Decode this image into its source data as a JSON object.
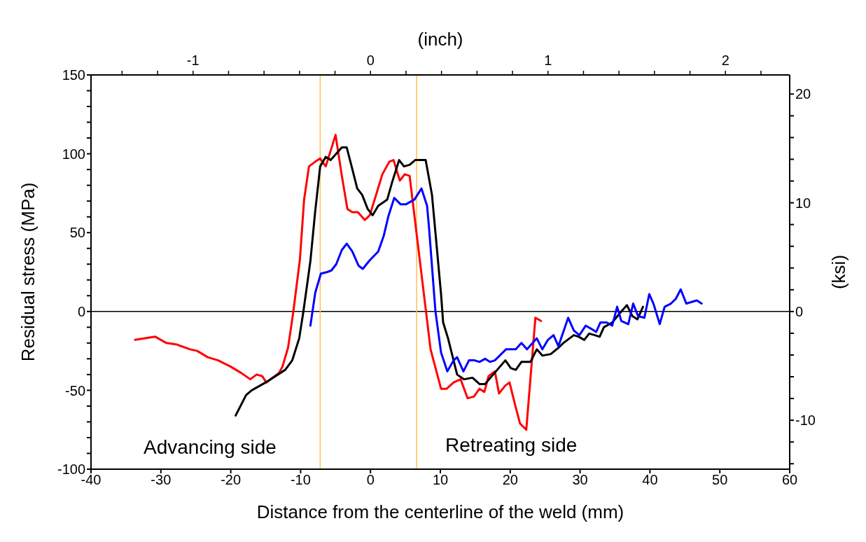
{
  "chart_data": {
    "type": "line",
    "xlabel": "Distance from the centerline of the weld (mm)",
    "ylabel": "Residual stress  (MPa)",
    "y2label": "(ksi)",
    "x2label": "(inch)",
    "xlim": [
      -40,
      60
    ],
    "xticks": [
      -40,
      -30,
      -20,
      -10,
      0,
      10,
      20,
      30,
      40,
      50,
      60
    ],
    "ylim": [
      -100,
      150
    ],
    "yticks": [
      -100,
      {
        "value": -90,
        "label": null
      },
      {
        "value": -80,
        "label": null
      },
      {
        "value": -70,
        "label": null
      },
      {
        "value": -60,
        "label": null
      },
      -50,
      {
        "value": -40,
        "label": null
      },
      {
        "value": -30,
        "label": null
      },
      {
        "value": -20,
        "label": null
      },
      {
        "value": -10,
        "label": null
      },
      0,
      {
        "value": 10,
        "label": null
      },
      {
        "value": 20,
        "label": null
      },
      {
        "value": 30,
        "label": null
      },
      {
        "value": 40,
        "label": null
      },
      50,
      {
        "value": 60,
        "label": null
      },
      {
        "value": 70,
        "label": null
      },
      {
        "value": 80,
        "label": null
      },
      {
        "value": 90,
        "label": null
      },
      100,
      {
        "value": 110,
        "label": null
      },
      {
        "value": 120,
        "label": null
      },
      {
        "value": 130,
        "label": null
      },
      {
        "value": 140,
        "label": null
      },
      150
    ],
    "y2lim": [
      -14.5,
      21.76
    ],
    "y2ticks": [
      {
        "value": -14,
        "label": null
      },
      {
        "value": -12,
        "label": null
      },
      -10,
      {
        "value": -8,
        "label": null
      },
      {
        "value": -6,
        "label": null
      },
      {
        "value": -4,
        "label": null
      },
      {
        "value": -2,
        "label": null
      },
      0,
      {
        "value": 2,
        "label": null
      },
      {
        "value": 4,
        "label": null
      },
      {
        "value": 6,
        "label": null
      },
      {
        "value": 8,
        "label": null
      },
      10,
      {
        "value": 12,
        "label": null
      },
      {
        "value": 14,
        "label": null
      },
      {
        "value": 16,
        "label": null
      },
      {
        "value": 18,
        "label": null
      },
      20
    ],
    "x2lim": [
      -1.575,
      2.362
    ],
    "x2ticks": [
      {
        "value": -1.4,
        "label": null
      },
      {
        "value": -1.2,
        "label": null
      },
      -1,
      {
        "value": -0.8,
        "label": null
      },
      {
        "value": -0.6,
        "label": null
      },
      {
        "value": -0.4,
        "label": null
      },
      {
        "value": -0.2,
        "label": null
      },
      0,
      {
        "value": 0.2,
        "label": null
      },
      {
        "value": 0.4,
        "label": null
      },
      {
        "value": 0.6,
        "label": null
      },
      {
        "value": 0.8,
        "label": null
      },
      1,
      {
        "value": 1.2,
        "label": null
      },
      {
        "value": 1.4,
        "label": null
      },
      {
        "value": 1.6,
        "label": null
      },
      {
        "value": 1.8,
        "label": null
      },
      2,
      {
        "value": 2.2,
        "label": null
      }
    ],
    "grid": false,
    "marker": "none",
    "line_style": "solid",
    "ref_lines": [
      {
        "axis": "y",
        "value": 0,
        "color": "#000000"
      },
      {
        "axis": "x",
        "value": -7.2,
        "color": "#ffc050"
      },
      {
        "axis": "x",
        "value": 6.6,
        "color": "#ffc050"
      }
    ],
    "annotations": [
      "Advancing side",
      "Retreating side"
    ],
    "series": [
      {
        "color": "#ff0000",
        "x": [
          -33.7,
          -30.8,
          -29.2,
          -27.7,
          -25.8,
          -24.8,
          -23.3,
          -21.8,
          -20,
          -18.5,
          -17.2,
          -16.3,
          -15.5,
          -14.9,
          -13.1,
          -12.6,
          -11.8,
          -11.1,
          -10.1,
          -9.5,
          -8.8,
          -7.9,
          -7.2,
          -6.4,
          -5,
          -4.1,
          -3.3,
          -2.6,
          -1.8,
          -0.8,
          -0.1,
          0.6,
          1.7,
          2.7,
          3.3,
          4.2,
          4.9,
          5.6,
          8.6,
          10.1,
          10.9,
          11.9,
          12.9,
          13.9,
          14.8,
          15.6,
          16.3,
          16.9,
          17.8,
          18.4,
          19.3,
          19.9,
          20.8,
          21.4,
          22.3,
          23.6,
          24.4
        ],
        "values": [
          -18,
          -16,
          -20,
          -21,
          -24,
          -25,
          -29,
          -31,
          -35,
          -39,
          -43,
          -40,
          -41,
          -45,
          -39,
          -35,
          -23,
          -2,
          33,
          71,
          92,
          95,
          97,
          92,
          112,
          86,
          65,
          63,
          63,
          58,
          61,
          71,
          87,
          95,
          96,
          83,
          87,
          86,
          -24,
          -49,
          -49,
          -45,
          -43,
          -55,
          -54,
          -49,
          -51,
          -41,
          -38,
          -52,
          -47,
          -45,
          -61,
          -71,
          -75,
          -4,
          -6
        ]
      },
      {
        "color": "#000000",
        "x": [
          -19.3,
          -17.8,
          -17,
          -15,
          -13.6,
          -12.2,
          -11.2,
          -10.2,
          -9.6,
          -8.6,
          -7.9,
          -7.2,
          -6.4,
          -5.7,
          -4.9,
          -4.1,
          -3.4,
          -2.7,
          -1.9,
          -1.2,
          -0.4,
          0.3,
          1.1,
          2.4,
          3.1,
          4.1,
          4.8,
          5.6,
          6.4,
          7.1,
          7.9,
          8.8,
          9.4,
          10.1,
          10.4,
          11.1,
          12.4,
          13.4,
          14.6,
          15.6,
          16.4,
          19.3,
          20.1,
          20.8,
          21.6,
          22.9,
          23.8,
          24.6,
          25.8,
          26.9,
          27.6,
          29.1,
          29.8,
          30.6,
          31.3,
          32.1,
          32.8,
          33.4,
          34.6,
          35.9,
          36.7,
          37.5,
          38.2,
          39
        ],
        "values": [
          -66,
          -53,
          -50,
          -45,
          -41,
          -37,
          -31,
          -17,
          0,
          32,
          64,
          92,
          98,
          96,
          100,
          104,
          104,
          92,
          78,
          74,
          65,
          61,
          67,
          71,
          82,
          96,
          92,
          93,
          96,
          96,
          96,
          74,
          45,
          11,
          -7,
          -17,
          -40,
          -43,
          -42,
          -46,
          -46,
          -31,
          -36,
          -37,
          -32,
          -32,
          -24,
          -28,
          -27,
          -23,
          -20,
          -15,
          -16,
          -18,
          -14,
          -15,
          -16,
          -10,
          -7,
          0,
          4,
          -3,
          -5,
          3
        ]
      },
      {
        "color": "#0000ff",
        "x": [
          -8.6,
          -7.9,
          -7.1,
          -6.2,
          -5.6,
          -4.9,
          -4.1,
          -3.4,
          -2.6,
          -1.7,
          -1.1,
          -0.2,
          1.1,
          1.9,
          2.6,
          3.4,
          4.3,
          5.1,
          6.3,
          7.3,
          8.1,
          8.4,
          9.3,
          10.1,
          11,
          11.9,
          12.4,
          13.3,
          14.1,
          14.9,
          15.6,
          16.4,
          17.1,
          17.8,
          19.4,
          20.8,
          21.6,
          22.4,
          23.8,
          24.6,
          25.4,
          26.2,
          26.9,
          28.3,
          29.1,
          29.9,
          30.8,
          31.6,
          32.3,
          32.9,
          33.8,
          34.6,
          35.3,
          35.9,
          36.9,
          37.6,
          38.3,
          39.2,
          39.9,
          40.5,
          41.4,
          42.1,
          43,
          43.7,
          44.4,
          45.2,
          46.7,
          47.4
        ],
        "values": [
          -9,
          12,
          24,
          25,
          26,
          30,
          39,
          43,
          38,
          29,
          27,
          32,
          38,
          48,
          61,
          72,
          68,
          68,
          71,
          78,
          67,
          52,
          0,
          -26,
          -38,
          -31,
          -29,
          -38,
          -31,
          -31,
          -32,
          -30,
          -32,
          -31,
          -24,
          -24,
          -20,
          -24,
          -17,
          -24,
          -18,
          -15,
          -22,
          -4,
          -12,
          -15,
          -9,
          -11,
          -13,
          -7,
          -7,
          -9,
          3,
          -6,
          -8,
          5,
          -3,
          -4,
          11,
          5,
          -8,
          3,
          5,
          8,
          14,
          5,
          7,
          5
        ]
      }
    ]
  }
}
